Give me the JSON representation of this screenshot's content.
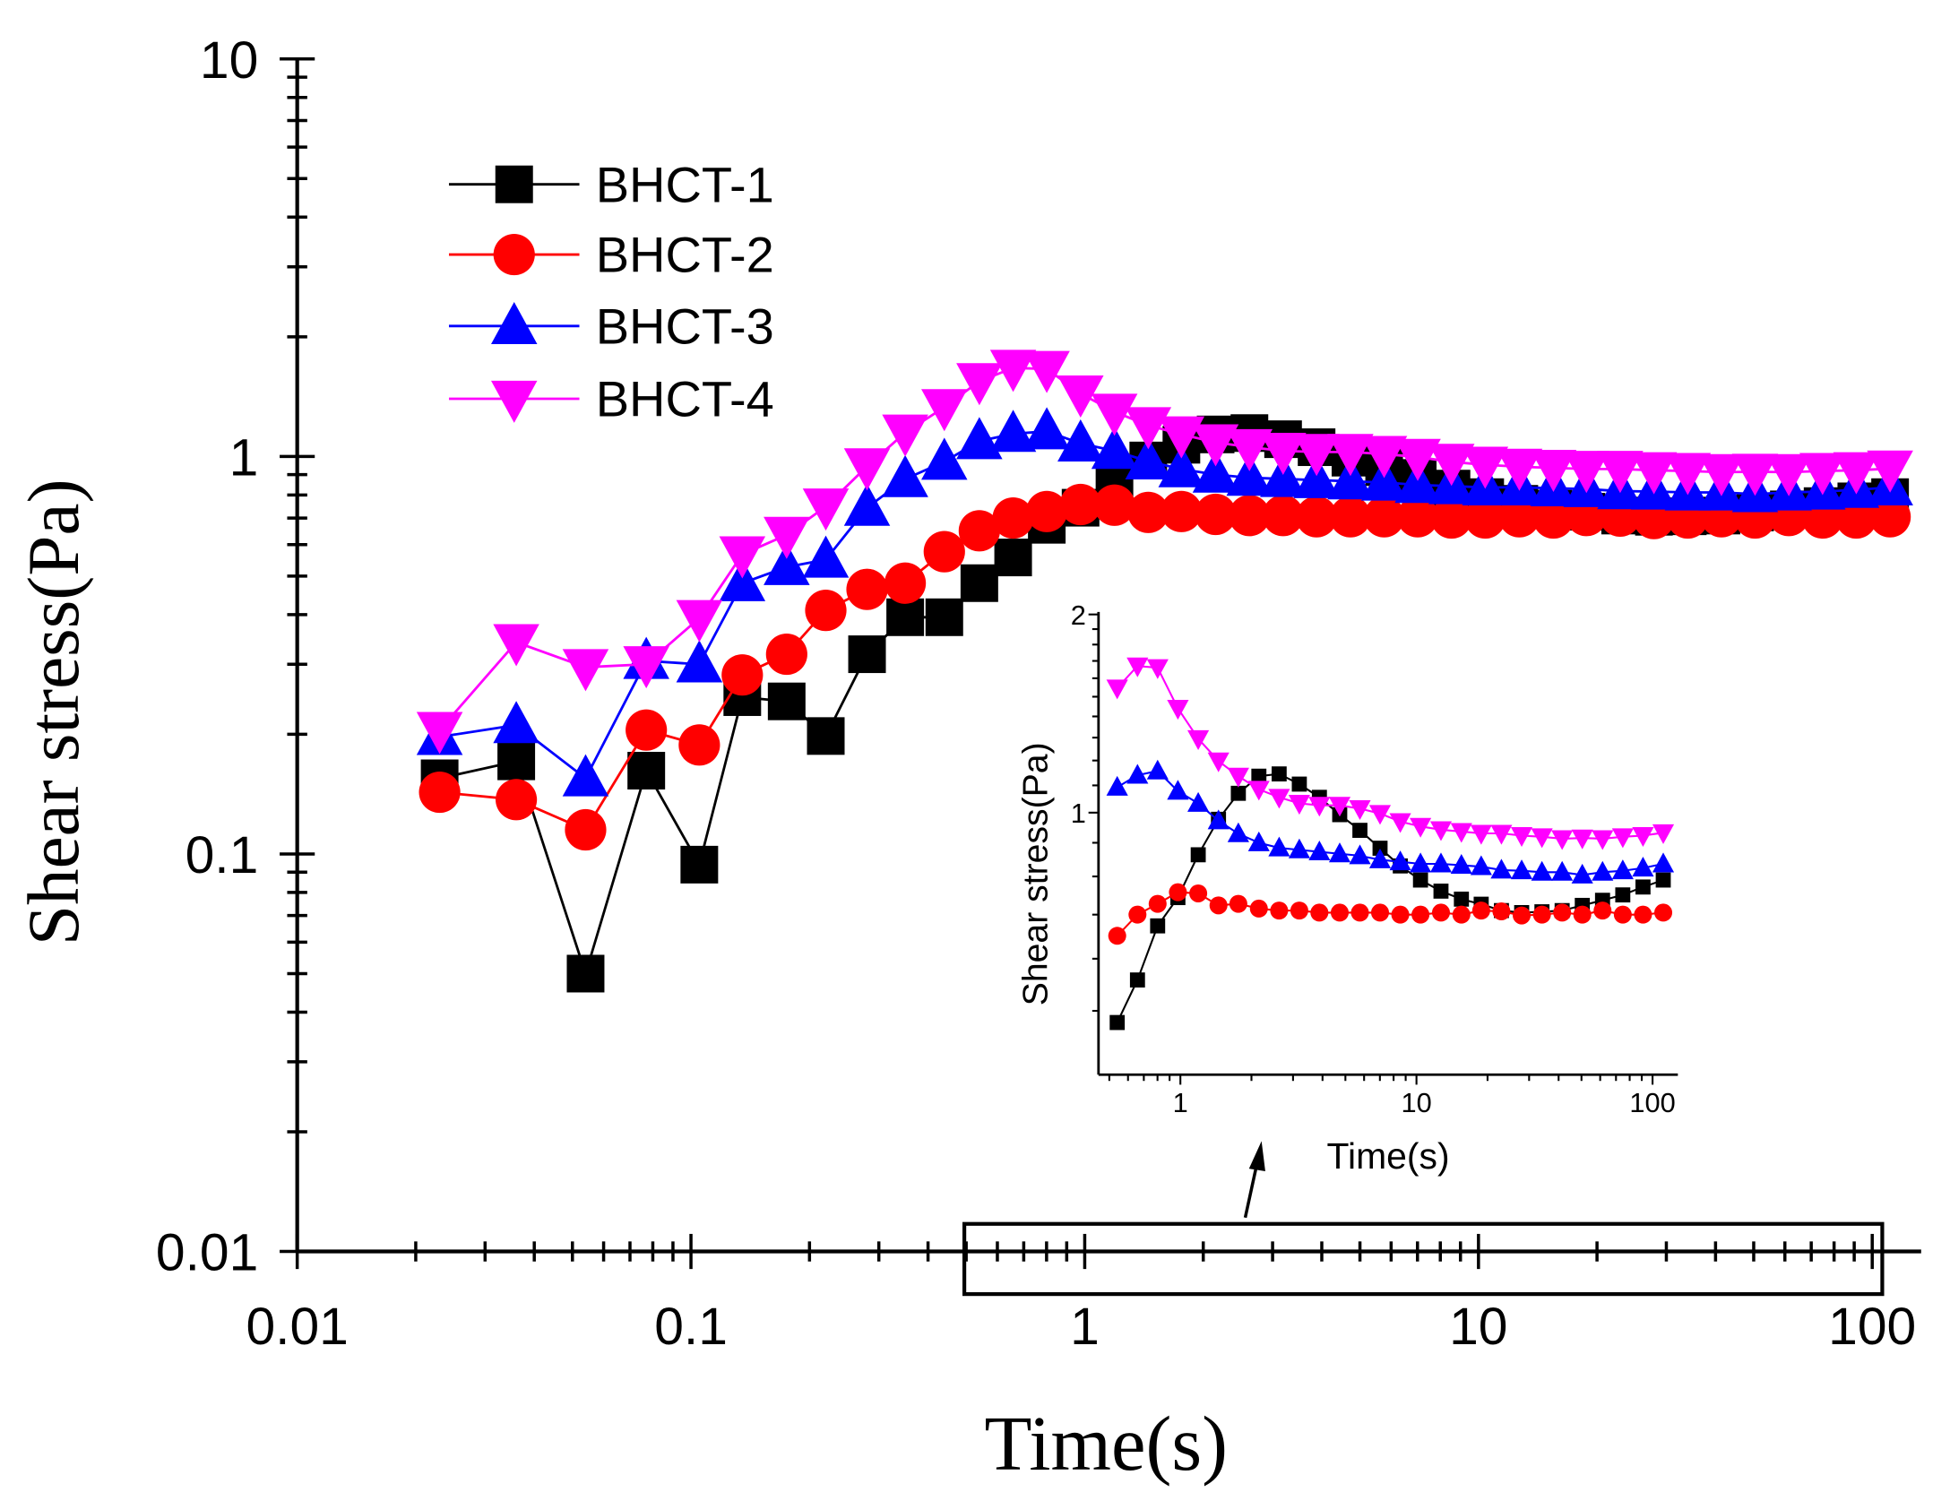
{
  "chart_data": {
    "type": "line",
    "xlabel": "Time(s)",
    "ylabel": "Shear stress(Pa)",
    "xscale": "log",
    "yscale": "log",
    "xlim": [
      0.01,
      133
    ],
    "ylim": [
      0.01,
      10
    ],
    "x_ticks": [
      {
        "v": 0.01,
        "label": "0.01"
      },
      {
        "v": 0.1,
        "label": "0.1"
      },
      {
        "v": 1,
        "label": "1"
      },
      {
        "v": 10,
        "label": "10"
      },
      {
        "v": 100,
        "label": "100"
      }
    ],
    "y_ticks": [
      {
        "v": 0.01,
        "label": "0.01"
      },
      {
        "v": 0.1,
        "label": "0.1"
      },
      {
        "v": 1,
        "label": "1"
      },
      {
        "v": 10,
        "label": "10"
      }
    ],
    "legend_position": "top-left",
    "x": [
      0.023,
      0.036,
      0.054,
      0.077,
      0.105,
      0.135,
      0.175,
      0.22,
      0.28,
      0.35,
      0.44,
      0.54,
      0.658,
      0.801,
      0.976,
      1.19,
      1.45,
      1.76,
      2.15,
      2.62,
      3.19,
      3.88,
      4.73,
      5.76,
      7.01,
      8.54,
      10.4,
      12.7,
      15.5,
      18.8,
      22.9,
      27.9,
      34.0,
      41.4,
      50.4,
      61.4,
      74.8,
      91.1,
      111
    ],
    "series": [
      {
        "name": "BHCT-1",
        "color": "#000000",
        "marker": "square",
        "values": [
          0.155,
          0.171,
          0.05,
          0.162,
          0.094,
          0.248,
          0.242,
          0.198,
          0.318,
          0.394,
          0.394,
          0.48,
          0.557,
          0.673,
          0.743,
          0.863,
          0.977,
          1.07,
          1.136,
          1.145,
          1.105,
          1.055,
          0.993,
          0.94,
          0.883,
          0.83,
          0.79,
          0.76,
          0.739,
          0.726,
          0.71,
          0.705,
          0.707,
          0.71,
          0.723,
          0.736,
          0.75,
          0.771,
          0.79
        ]
      },
      {
        "name": "BHCT-2",
        "color": "#ff0000",
        "marker": "circle",
        "values": [
          0.143,
          0.137,
          0.115,
          0.205,
          0.188,
          0.282,
          0.318,
          0.41,
          0.463,
          0.48,
          0.576,
          0.65,
          0.7,
          0.727,
          0.757,
          0.754,
          0.723,
          0.727,
          0.715,
          0.71,
          0.71,
          0.705,
          0.705,
          0.705,
          0.705,
          0.7,
          0.7,
          0.705,
          0.7,
          0.71,
          0.708,
          0.698,
          0.7,
          0.705,
          0.7,
          0.71,
          0.7,
          0.7,
          0.705
        ]
      },
      {
        "name": "BHCT-3",
        "color": "#0000ff",
        "marker": "triangle-up",
        "values": [
          0.197,
          0.211,
          0.155,
          0.306,
          0.3,
          0.48,
          0.527,
          0.55,
          0.743,
          0.877,
          0.97,
          1.093,
          1.14,
          1.157,
          1.078,
          1.033,
          0.972,
          0.929,
          0.9,
          0.884,
          0.878,
          0.872,
          0.866,
          0.86,
          0.848,
          0.842,
          0.836,
          0.836,
          0.832,
          0.828,
          0.818,
          0.816,
          0.812,
          0.812,
          0.804,
          0.812,
          0.816,
          0.824,
          0.836
        ]
      },
      {
        "name": "BHCT-4",
        "color": "#ff00ff",
        "marker": "triangle-down",
        "values": [
          0.205,
          0.341,
          0.295,
          0.3,
          0.392,
          0.567,
          0.635,
          0.748,
          0.944,
          1.148,
          1.33,
          1.546,
          1.67,
          1.66,
          1.44,
          1.295,
          1.198,
          1.136,
          1.085,
          1.055,
          1.033,
          1.026,
          1.026,
          1.014,
          0.997,
          0.969,
          0.953,
          0.942,
          0.936,
          0.93,
          0.93,
          0.923,
          0.919,
          0.913,
          0.915,
          0.913,
          0.919,
          0.923,
          0.932
        ]
      }
    ],
    "inset": {
      "xlabel": "Time(s)",
      "ylabel": "Shear stress(Pa)",
      "xlim": [
        0.45,
        128
      ],
      "ylim": [
        0.4,
        2
      ],
      "x_min_shown": 0.5,
      "x_ticks": [
        {
          "v": 1,
          "label": "1"
        },
        {
          "v": 10,
          "label": "10"
        },
        {
          "v": 100,
          "label": "100"
        }
      ],
      "y_ticks": [
        {
          "v": 1,
          "label": "1"
        },
        {
          "v": 2,
          "label": "2"
        }
      ],
      "zoom_region_x": [
        0.5,
        105
      ]
    }
  }
}
